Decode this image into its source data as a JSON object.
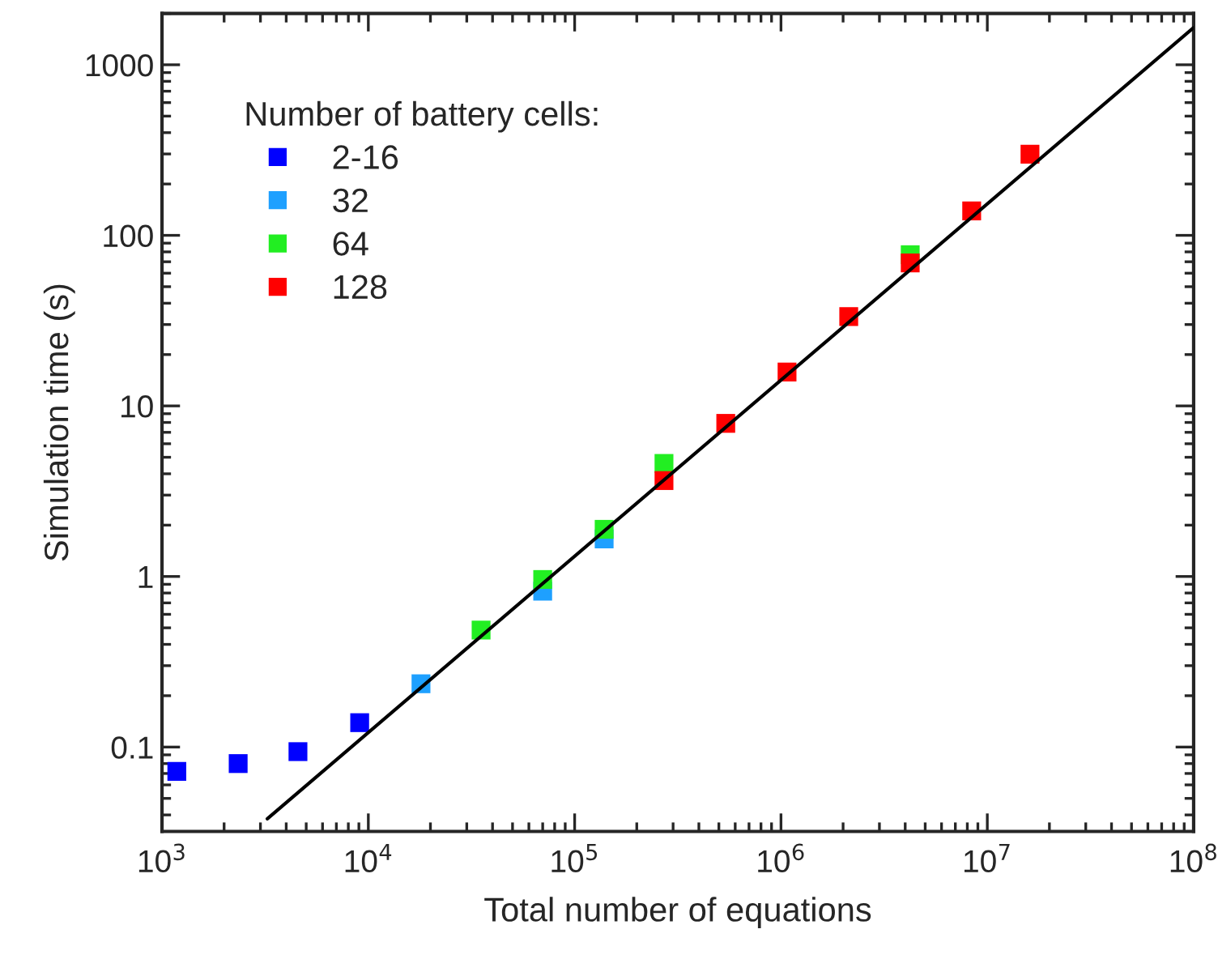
{
  "chart_data": {
    "type": "scatter",
    "xlabel": "Total number of equations",
    "ylabel": "Simulation time (s)",
    "legend_title": "Number of battery cells:",
    "log": "xy",
    "xlim": [
      1000,
      100000000
    ],
    "ylim": [
      0.032,
      2000
    ],
    "xticks": [
      {
        "value": 1000,
        "label": "10$^{3}$"
      },
      {
        "value": 10000,
        "label": "10$^{4}$"
      },
      {
        "value": 100000,
        "label": "10$^{5}$"
      },
      {
        "value": 1000000,
        "label": "10$^{6}$"
      },
      {
        "value": 10000000,
        "label": "10$^{7}$"
      },
      {
        "value": 100000000,
        "label": "10$^{8}$"
      }
    ],
    "yticks": [
      0.1,
      1,
      10,
      100,
      1000
    ],
    "grid": false,
    "legend": "top left",
    "marker": "square",
    "series": [
      {
        "name": "2-16",
        "color": "#0000ff",
        "x": [
          1180,
          2340,
          4560,
          9080
        ],
        "values": [
          0.072,
          0.08,
          0.094,
          0.139
        ]
      },
      {
        "name": "32",
        "color": "#1ea0ff",
        "x": [
          18000,
          70000,
          139000
        ],
        "values": [
          0.235,
          0.82,
          1.66
        ]
      },
      {
        "name": "64",
        "color": "#22ee22",
        "x": [
          35200,
          70000,
          139000,
          271000,
          4230000
        ],
        "values": [
          0.485,
          0.96,
          1.89,
          4.6,
          77
        ]
      },
      {
        "name": "128",
        "color": "#ff0000",
        "x": [
          271000,
          540000,
          1070000,
          2130000,
          4230000,
          8400000,
          16100000
        ],
        "values": [
          3.65,
          7.9,
          15.8,
          33.4,
          68.9,
          139,
          299
        ]
      },
      {
        "type": "line",
        "color": "#000000",
        "marker": "none",
        "x": [
          3240,
          100000000
        ],
        "values": [
          0.038,
          1650
        ]
      }
    ]
  }
}
